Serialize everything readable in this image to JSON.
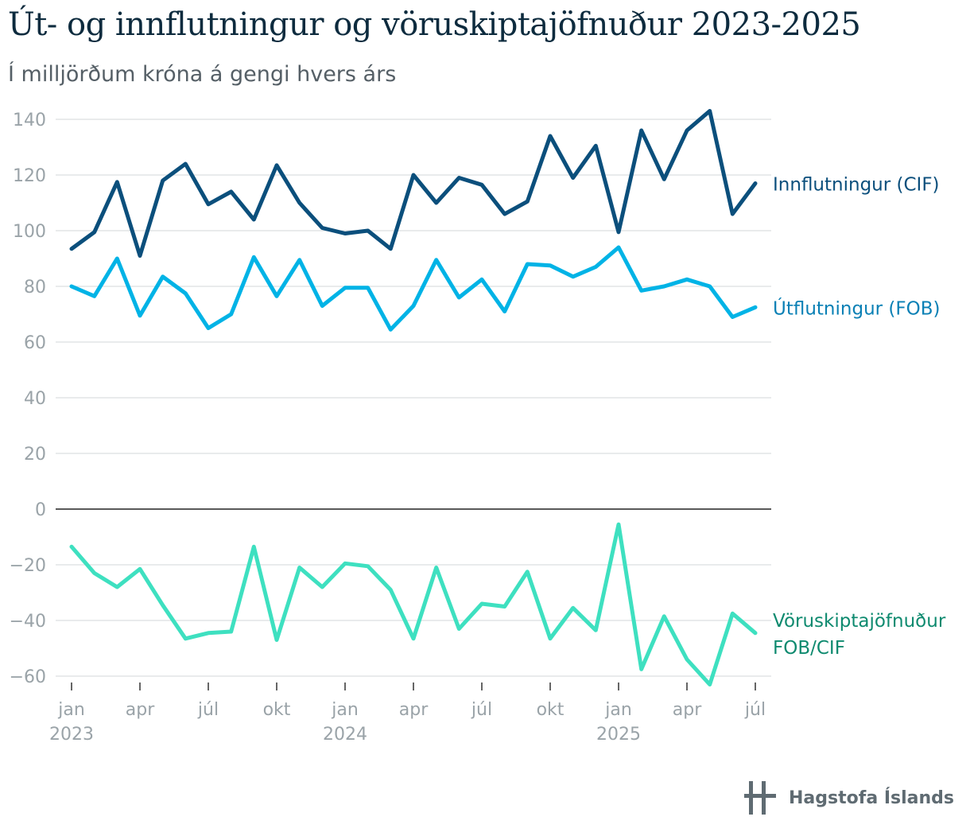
{
  "title": "Út- og innflutningur og vöruskiptajöfnuður 2023-2025",
  "subtitle": "Í milljörðum króna á gengi hvers árs",
  "source": "Hagstofa Íslands",
  "chart_data": {
    "type": "line",
    "x": [
      "2023-01",
      "2023-02",
      "2023-03",
      "2023-04",
      "2023-05",
      "2023-06",
      "2023-07",
      "2023-08",
      "2023-09",
      "2023-10",
      "2023-11",
      "2023-12",
      "2024-01",
      "2024-02",
      "2024-03",
      "2024-04",
      "2024-05",
      "2024-06",
      "2024-07",
      "2024-08",
      "2024-09",
      "2024-10",
      "2024-11",
      "2024-12",
      "2025-01",
      "2025-02",
      "2025-03",
      "2025-04",
      "2025-05",
      "2025-06",
      "2025-07"
    ],
    "x_tick_labels": [
      {
        "month": "2023-01",
        "label": "jan",
        "year": "2023"
      },
      {
        "month": "2023-04",
        "label": "apr",
        "year": ""
      },
      {
        "month": "2023-07",
        "label": "júl",
        "year": ""
      },
      {
        "month": "2023-10",
        "label": "okt",
        "year": ""
      },
      {
        "month": "2024-01",
        "label": "jan",
        "year": "2024"
      },
      {
        "month": "2024-04",
        "label": "apr",
        "year": ""
      },
      {
        "month": "2024-07",
        "label": "júl",
        "year": ""
      },
      {
        "month": "2024-10",
        "label": "okt",
        "year": ""
      },
      {
        "month": "2025-01",
        "label": "jan",
        "year": "2025"
      },
      {
        "month": "2025-04",
        "label": "apr",
        "year": ""
      },
      {
        "month": "2025-07",
        "label": "júl",
        "year": ""
      }
    ],
    "y_ticks": [
      140,
      120,
      100,
      80,
      60,
      40,
      20,
      0,
      -20,
      -40,
      -60
    ],
    "y_tick_labels": [
      "140",
      "120",
      "100",
      "80",
      "60",
      "40",
      "20",
      "0",
      "−20",
      "−40",
      "−60"
    ],
    "ylim": [
      -64,
      147
    ],
    "grid": true,
    "legend": "line-end labels on right",
    "series": [
      {
        "name": "Innflutningur (CIF)",
        "label_lines": [
          "Innflutningur (CIF)"
        ],
        "color": "#0b4f7c",
        "label_color": "#0b4f7c",
        "values": [
          93.5,
          99.5,
          117.5,
          91,
          118,
          124,
          109.5,
          114,
          104,
          123.5,
          110,
          101,
          99,
          100,
          93.5,
          120,
          110,
          119,
          116.5,
          106,
          110.5,
          134,
          119,
          130.5,
          99.5,
          136,
          118.5,
          136,
          143,
          106,
          117
        ]
      },
      {
        "name": "Útflutningur (FOB)",
        "label_lines": [
          "Útflutningur (FOB)"
        ],
        "color": "#00b3e6",
        "label_color": "#0a80b5",
        "values": [
          80,
          76.5,
          90,
          69.5,
          83.5,
          77.5,
          65,
          70,
          90.5,
          76.5,
          89.5,
          73,
          79.5,
          79.5,
          64.5,
          73,
          89.5,
          76,
          82.5,
          71,
          88,
          87.5,
          83.5,
          87,
          94,
          78.5,
          80,
          82.5,
          80,
          69,
          72.5
        ]
      },
      {
        "name": "Vöruskiptajöfnuður FOB/CIF",
        "label_lines": [
          "Vöruskiptajöfnuður",
          "FOB/CIF"
        ],
        "color": "#3ee0c0",
        "label_color": "#0e8a6f",
        "values": [
          -13.5,
          -23,
          -28,
          -21.5,
          -34.5,
          -46.5,
          -44.5,
          -44,
          -13.5,
          -47,
          -21,
          -28,
          -19.5,
          -20.5,
          -29,
          -46.5,
          -21,
          -43,
          -34,
          -35,
          -22.5,
          -46.5,
          -35.5,
          -43.5,
          -5.5,
          -57.5,
          -38.5,
          -54,
          -63,
          -37.5,
          -44.5
        ]
      }
    ]
  }
}
